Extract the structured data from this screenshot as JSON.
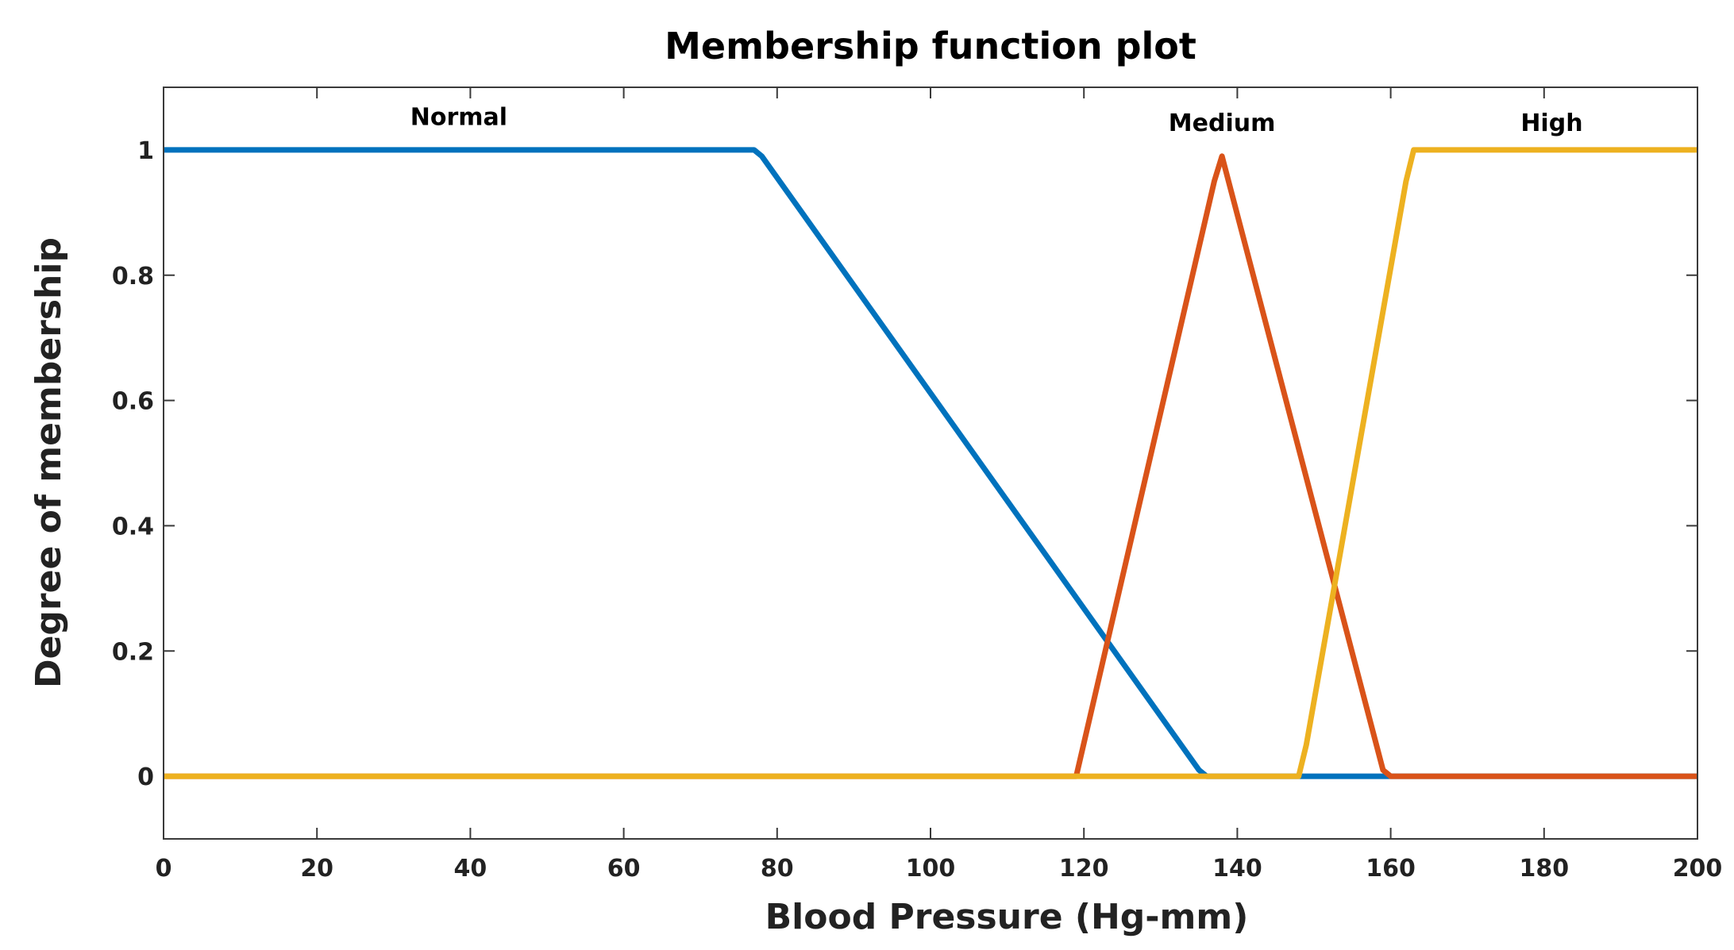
{
  "chart_data": {
    "type": "line",
    "title": "Membership function plot",
    "xlabel": "Blood Pressure (Hg-mm)",
    "ylabel": "Degree of membership",
    "xlim": [
      0,
      200
    ],
    "ylim": [
      -0.1,
      1.1
    ],
    "xticks": [
      0,
      20,
      40,
      60,
      80,
      100,
      120,
      140,
      160,
      180,
      200
    ],
    "xtick_labels": [
      "0",
      "20",
      "40",
      "60",
      "80",
      "100",
      "120",
      "140",
      "160",
      "180",
      "200"
    ],
    "yticks": [
      0,
      0.2,
      0.4,
      0.6,
      0.8,
      1
    ],
    "ytick_labels": [
      "0",
      "0.2",
      "0.4",
      "0.6",
      "0.8",
      "1"
    ],
    "grid": false,
    "series": [
      {
        "name": "Normal",
        "color": "#0072BD",
        "x": [
          0,
          77,
          78,
          135,
          136,
          200
        ],
        "y": [
          1,
          1,
          0.99,
          0.01,
          0,
          0
        ],
        "label_at": [
          38.5,
          1.04
        ]
      },
      {
        "name": "Medium",
        "color": "#D95319",
        "x": [
          0,
          119,
          137,
          138,
          159,
          160,
          200
        ],
        "y": [
          0,
          0,
          0.95,
          0.99,
          0.01,
          0,
          0
        ],
        "label_at": [
          138,
          1.03
        ]
      },
      {
        "name": "High",
        "color": "#EDB120",
        "x": [
          0,
          148,
          149,
          162,
          163,
          200
        ],
        "y": [
          0,
          0,
          0.05,
          0.95,
          1,
          1
        ],
        "label_at": [
          181,
          1.03
        ]
      }
    ]
  }
}
